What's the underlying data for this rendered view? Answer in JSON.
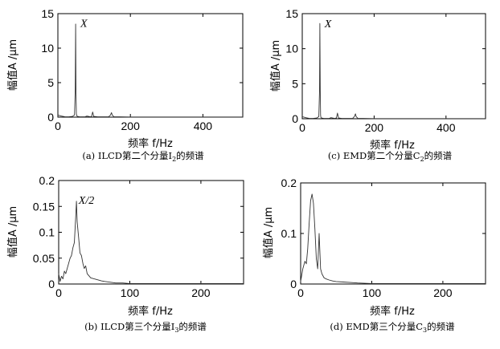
{
  "chart_data": [
    {
      "id": "a",
      "type": "line",
      "caption": "(a)  ILCD第二个分量I",
      "caption_sub": "2",
      "caption_tail": "的频谱",
      "xlabel": "频率 f/Hz",
      "ylabel": "幅值A /μm",
      "xlim": [
        0,
        510
      ],
      "ylim": [
        0,
        15
      ],
      "xticks": [
        0,
        200,
        400
      ],
      "yticks": [
        0,
        5,
        10,
        15
      ],
      "annotation": {
        "text": "X",
        "x": 62,
        "y": 13.3
      },
      "x": [
        0,
        10,
        20,
        30,
        40,
        46,
        48,
        49,
        50,
        51,
        52,
        54,
        60,
        75,
        80,
        90,
        93,
        96,
        99,
        110,
        140,
        145,
        148,
        150,
        155,
        170,
        200,
        250,
        300,
        350,
        400,
        450,
        510
      ],
      "y": [
        0.3,
        0.15,
        0.05,
        0.05,
        0.1,
        0.3,
        4,
        13.5,
        4,
        0.5,
        0.2,
        0.1,
        0.05,
        0.05,
        0.15,
        0.05,
        0.1,
        0.75,
        0.1,
        0.05,
        0.05,
        0.3,
        0.65,
        0.3,
        0.05,
        0.05,
        0.02,
        0.02,
        0.02,
        0.02,
        0.02,
        0.02,
        0.02
      ]
    },
    {
      "id": "c",
      "type": "line",
      "caption": "(c)  EMD第二个分量C",
      "caption_sub": "2",
      "caption_tail": "的频谱",
      "xlabel": "频率 f/Hz",
      "ylabel": "幅值A /μm",
      "xlim": [
        0,
        510
      ],
      "ylim": [
        0,
        15
      ],
      "xticks": [
        0,
        200,
        400
      ],
      "yticks": [
        0,
        5,
        10,
        15
      ],
      "annotation": {
        "text": "X",
        "x": 62,
        "y": 13.3
      },
      "x": [
        0,
        10,
        20,
        30,
        40,
        46,
        48,
        49,
        50,
        51,
        52,
        54,
        60,
        75,
        80,
        90,
        95,
        98,
        101,
        110,
        140,
        145,
        148,
        150,
        155,
        170,
        200,
        250,
        300,
        350,
        400,
        450,
        510
      ],
      "y": [
        0.3,
        0.15,
        0.05,
        0.05,
        0.1,
        0.3,
        4,
        13.6,
        4,
        0.5,
        0.2,
        0.1,
        0.05,
        0.05,
        0.15,
        0.05,
        0.1,
        0.8,
        0.1,
        0.05,
        0.05,
        0.3,
        0.7,
        0.3,
        0.05,
        0.05,
        0.02,
        0.02,
        0.02,
        0.02,
        0.02,
        0.02,
        0.02
      ]
    },
    {
      "id": "b",
      "type": "line",
      "caption": "(b)  ILCD第三个分量I",
      "caption_sub": "3",
      "caption_tail": "的频谱",
      "xlabel": "频率 f/Hz",
      "ylabel": "幅值A /μm",
      "xlim": [
        0,
        260
      ],
      "ylim": [
        0,
        0.2
      ],
      "xticks": [
        0,
        100,
        200
      ],
      "yticks": [
        0,
        0.05,
        0.1,
        0.15,
        0.2
      ],
      "annotation": {
        "text": "X/2",
        "x": 28,
        "y": 0.158
      },
      "x": [
        0,
        2,
        4,
        6,
        8,
        10,
        12,
        14,
        16,
        18,
        20,
        22,
        24,
        25,
        26,
        28,
        30,
        32,
        34,
        36,
        38,
        40,
        45,
        50,
        55,
        60,
        65,
        70,
        80,
        90,
        100,
        120,
        150,
        200,
        260
      ],
      "y": [
        0.02,
        0.005,
        0.015,
        0.01,
        0.025,
        0.02,
        0.03,
        0.04,
        0.05,
        0.055,
        0.07,
        0.08,
        0.13,
        0.16,
        0.12,
        0.09,
        0.06,
        0.055,
        0.04,
        0.03,
        0.035,
        0.02,
        0.012,
        0.01,
        0.008,
        0.006,
        0.005,
        0.004,
        0.002,
        0.002,
        0.001,
        0.001,
        0.001,
        0.001,
        0.001
      ]
    },
    {
      "id": "d",
      "type": "line",
      "caption": "(d)  EMD第三个分量C",
      "caption_sub": "3",
      "caption_tail": "的频谱",
      "xlabel": "频率 f/Hz",
      "ylabel": "幅值A /μm",
      "xlim": [
        0,
        260
      ],
      "ylim": [
        0,
        0.2
      ],
      "xticks": [
        0,
        100,
        200
      ],
      "yticks": [
        0,
        0.1,
        0.2
      ],
      "annotation": null,
      "x": [
        0,
        3,
        6,
        8,
        10,
        12,
        14,
        16,
        18,
        20,
        22,
        24,
        26,
        28,
        30,
        33,
        36,
        40,
        45,
        50,
        60,
        70,
        80,
        100,
        120,
        150,
        200,
        260
      ],
      "y": [
        0.005,
        0.03,
        0.045,
        0.04,
        0.07,
        0.12,
        0.165,
        0.178,
        0.16,
        0.11,
        0.05,
        0.03,
        0.1,
        0.03,
        0.02,
        0.012,
        0.01,
        0.008,
        0.006,
        0.005,
        0.004,
        0.003,
        0.002,
        0.001,
        0.001,
        0.001,
        0.001,
        0.001
      ]
    }
  ]
}
